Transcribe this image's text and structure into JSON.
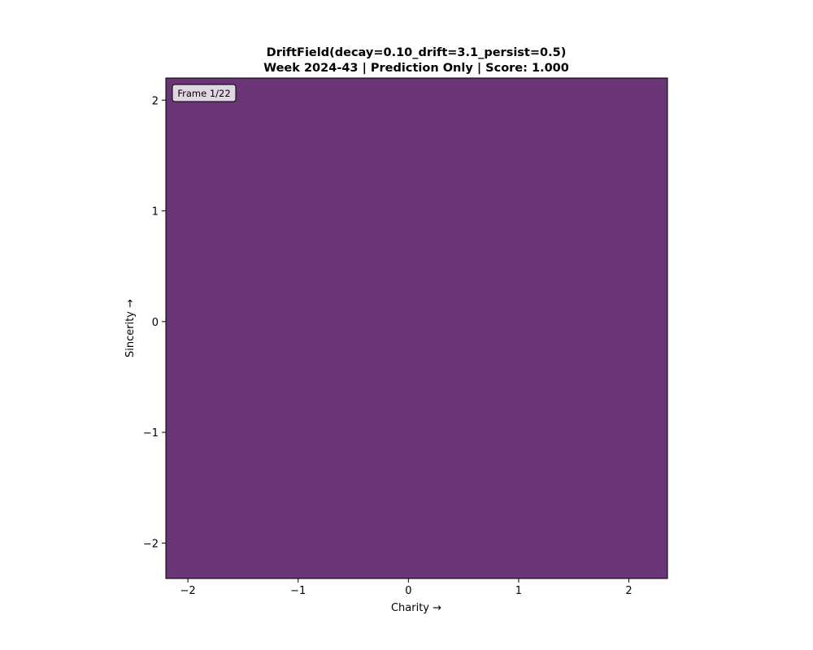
{
  "chart_data": {
    "type": "heatmap",
    "title": "DriftField(decay=0.10_drift=3.1_persist=0.5)",
    "subtitle": "Week 2024-43 | Prediction Only | Score: 1.000",
    "xlabel": "Charity →",
    "ylabel": "Sincerity →",
    "xlim": [
      -2.2,
      2.35
    ],
    "ylim": [
      -2.32,
      2.2
    ],
    "x_ticks": [
      -2,
      -1,
      0,
      1,
      2
    ],
    "y_ticks": [
      -2,
      -1,
      0,
      1,
      2
    ],
    "x_tick_labels": [
      "−2",
      "−1",
      "0",
      "1",
      "2"
    ],
    "y_tick_labels": [
      "−2",
      "−1",
      "0",
      "1",
      "2"
    ],
    "fill_color": "#693574",
    "grid": false,
    "annotation": {
      "text": "Frame 1/22",
      "placement": "top-left"
    }
  }
}
